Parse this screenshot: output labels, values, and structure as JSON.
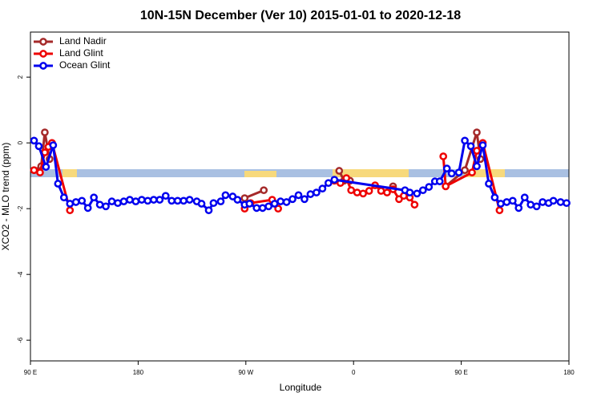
{
  "chart_data": {
    "type": "line",
    "title": "10N-15N December (Ver 10)   2015-01-01 to 2020-12-18",
    "xlabel": "Longitude",
    "ylabel": "XCO2 - MLO trend (ppm)",
    "xlim": [
      90,
      540
    ],
    "ylim": [
      -6.63,
      3.37
    ],
    "xticks": [
      {
        "value": 90,
        "label": "90 E"
      },
      180,
      {
        "value": 270,
        "label": "90 W"
      },
      {
        "value": 360,
        "label": "0"
      },
      {
        "value": 450,
        "label": "90 E"
      },
      {
        "value": 540,
        "label": "180"
      }
    ],
    "yticks": [
      -6,
      -4,
      -2,
      0,
      2
    ],
    "legend": "top-left",
    "series": [
      {
        "name": "Land Nadir",
        "color": "#a52a2a",
        "x": [
          93,
          99,
          102,
          106,
          200,
          269,
          285,
          300,
          348,
          352,
          357,
          375,
          393,
          415,
          437,
          453,
          463,
          466
        ],
        "values": [
          -0.83,
          -0.71,
          0.32,
          -0.49,
          null,
          -1.68,
          -1.44,
          null,
          -0.85,
          -1.15,
          -1.15,
          null,
          -1.32,
          null,
          -1.32,
          -0.83,
          0.32,
          -0.49
        ]
      },
      {
        "name": "Land Glint",
        "color": "#ee0000",
        "x": [
          93,
          98,
          102,
          105,
          108,
          123,
          200,
          269,
          274,
          292,
          297,
          320,
          344,
          349,
          354,
          358,
          363,
          368,
          373,
          378,
          383,
          388,
          393,
          398,
          402,
          407,
          411,
          420,
          435,
          437,
          459,
          463,
          468,
          482
        ],
        "values": [
          -0.83,
          -0.9,
          -0.29,
          -0.12,
          0,
          -2.05,
          null,
          -2.0,
          -1.83,
          -1.73,
          -2.0,
          null,
          -1.15,
          -1.22,
          -1.07,
          -1.44,
          -1.51,
          -1.54,
          -1.46,
          -1.29,
          -1.46,
          -1.51,
          -1.41,
          -1.71,
          -1.61,
          -1.66,
          -1.88,
          null,
          -0.41,
          -1.32,
          -0.9,
          -0.24,
          0,
          -2.05
        ]
      },
      {
        "name": "Ocean Glint",
        "color": "#0000ee",
        "x": [
          93,
          97,
          103,
          109,
          113,
          118,
          123,
          128,
          133,
          138,
          143,
          148,
          153,
          158,
          163,
          168,
          173,
          178,
          183,
          188,
          193,
          198,
          203,
          208,
          213,
          218,
          223,
          229,
          233,
          239,
          243,
          249,
          253,
          259,
          263,
          269,
          273,
          279,
          284,
          289,
          294,
          299,
          304,
          309,
          314,
          319,
          324,
          329,
          334,
          339,
          344,
          403,
          407,
          413,
          418,
          423,
          428,
          432,
          438,
          442,
          448,
          453,
          458,
          463,
          468,
          473,
          478,
          483,
          488,
          493,
          498,
          503,
          508,
          513,
          518,
          523,
          527,
          533,
          538
        ],
        "values": [
          0.07,
          -0.1,
          -0.73,
          -0.07,
          -1.24,
          -1.66,
          -1.85,
          -1.8,
          -1.76,
          -1.98,
          -1.66,
          -1.88,
          -1.93,
          -1.78,
          -1.83,
          -1.78,
          -1.73,
          -1.78,
          -1.73,
          -1.76,
          -1.73,
          -1.73,
          -1.61,
          -1.76,
          -1.76,
          -1.76,
          -1.73,
          -1.78,
          -1.85,
          -2.05,
          -1.83,
          -1.78,
          -1.59,
          -1.63,
          -1.73,
          -1.88,
          -1.85,
          -1.98,
          -1.98,
          -1.93,
          -1.85,
          -1.78,
          -1.8,
          -1.71,
          -1.59,
          -1.71,
          -1.56,
          -1.51,
          -1.39,
          -1.22,
          -1.12,
          -1.44,
          -1.51,
          -1.54,
          -1.44,
          -1.34,
          -1.17,
          -1.17,
          -0.78,
          -0.93,
          -0.9,
          0.07,
          -0.1,
          -0.71,
          -0.07,
          -1.24,
          -1.66,
          -1.85,
          -1.8,
          -1.76,
          -1.98,
          -1.66,
          -1.88,
          -1.93,
          -1.8,
          -1.83,
          -1.76,
          -1.8,
          -1.83
        ]
      }
    ]
  }
}
